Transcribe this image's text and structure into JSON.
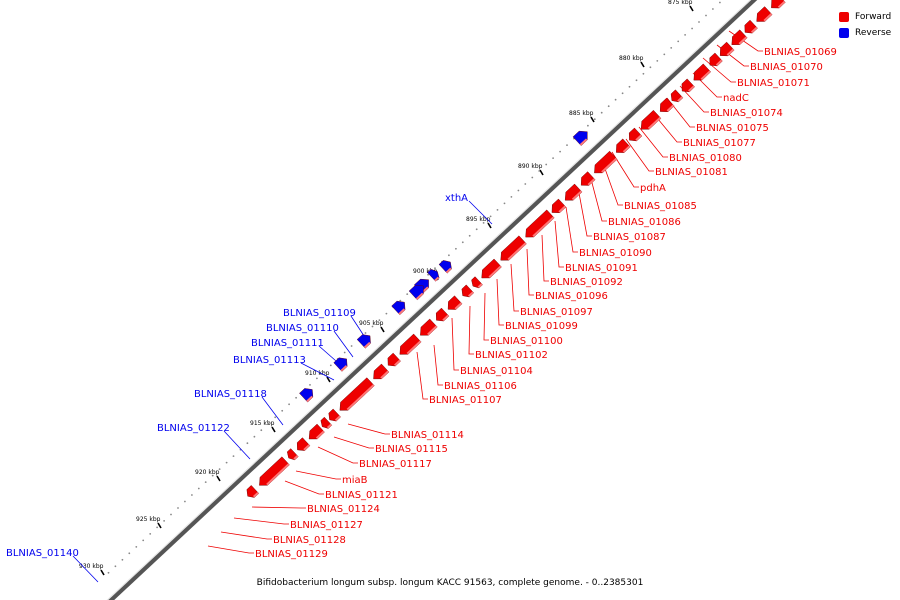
{
  "legend": {
    "forward_label": "Forward",
    "reverse_label": "Reverse",
    "forward_color": "#ee0000",
    "reverse_color": "#0000ee"
  },
  "footer": {
    "text": "Bifidobacterium longum subsp. longum KACC 91563, complete genome. - 0..2385301"
  },
  "ticks": [
    "875 kbp",
    "880 kbp",
    "885 kbp",
    "890 kbp",
    "895 kbp",
    "900 kbp",
    "905 kbp",
    "910 kbp",
    "915 kbp",
    "920 kbp",
    "925 kbp",
    "930 kbp"
  ],
  "genes_forward": [
    "BLNIAS_01069",
    "BLNIAS_01070",
    "BLNIAS_01071",
    "nadC",
    "BLNIAS_01074",
    "BLNIAS_01075",
    "BLNIAS_01077",
    "BLNIAS_01080",
    "BLNIAS_01081",
    "pdhA",
    "BLNIAS_01085",
    "BLNIAS_01086",
    "BLNIAS_01087",
    "BLNIAS_01090",
    "BLNIAS_01091",
    "BLNIAS_01092",
    "BLNIAS_01096",
    "BLNIAS_01097",
    "BLNIAS_01099",
    "BLNIAS_01100",
    "BLNIAS_01102",
    "BLNIAS_01104",
    "BLNIAS_01106",
    "BLNIAS_01107",
    "BLNIAS_01114",
    "BLNIAS_01115",
    "BLNIAS_01117",
    "miaB",
    "BLNIAS_01121",
    "BLNIAS_01124",
    "BLNIAS_01127",
    "BLNIAS_01128",
    "BLNIAS_01129"
  ],
  "genes_reverse": [
    "xthA",
    "BLNIAS_01109",
    "BLNIAS_01110",
    "BLNIAS_01111",
    "BLNIAS_01113",
    "BLNIAS_01118",
    "BLNIAS_01122",
    "BLNIAS_01140"
  ]
}
